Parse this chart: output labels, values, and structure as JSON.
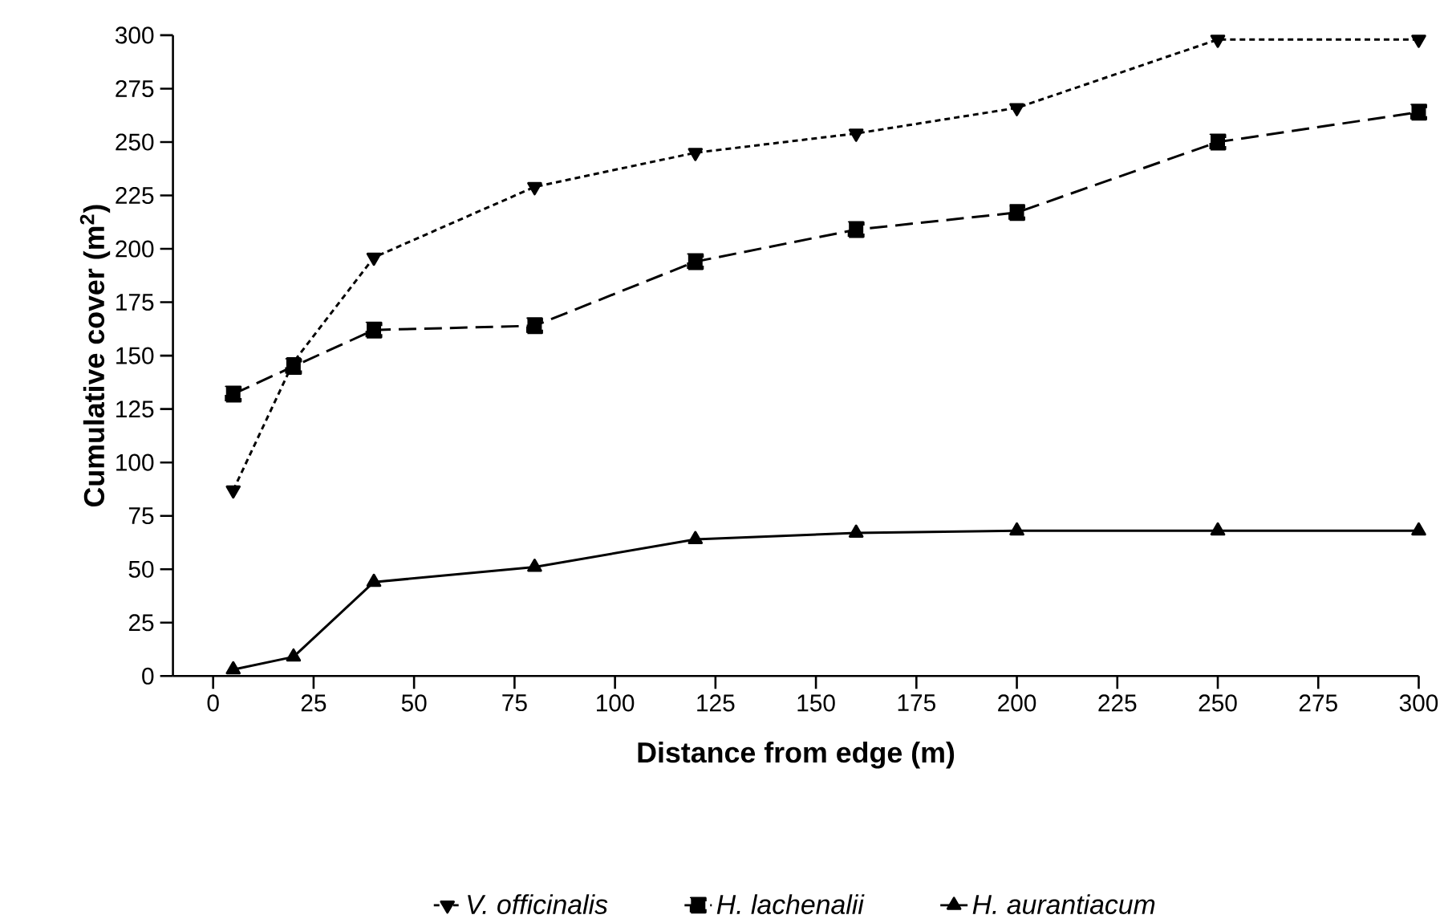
{
  "chart_data": {
    "type": "line",
    "xlabel": "Distance from edge (m)",
    "ylabel": "Cumulative cover (m$^{2}$)",
    "x": [
      5,
      20,
      40,
      80,
      120,
      160,
      200,
      250,
      300
    ],
    "xlim": [
      -10,
      300
    ],
    "xticks": [
      0,
      25,
      50,
      75,
      100,
      125,
      150,
      175,
      200,
      225,
      250,
      275,
      300
    ],
    "ylim": [
      0,
      300
    ],
    "yticks": [
      0,
      25,
      50,
      75,
      100,
      125,
      150,
      175,
      200,
      225,
      250,
      275,
      300
    ],
    "grid": false,
    "legend": "bottom",
    "series": [
      {
        "name": "V. officinalis",
        "color": "#000000",
        "marker": "triangle-down",
        "line_style": "dotted",
        "values": [
          87,
          147,
          196,
          229,
          245,
          254,
          266,
          298,
          298
        ]
      },
      {
        "name": "H. lachenalii",
        "color": "#000000",
        "marker": "square",
        "line_style": "dashed",
        "values": [
          132,
          145,
          162,
          164,
          194,
          209,
          217,
          250,
          264
        ]
      },
      {
        "name": "H. aurantiacum",
        "color": "#000000",
        "marker": "triangle",
        "line_style": "solid",
        "values": [
          3,
          9,
          44,
          51,
          64,
          67,
          68,
          68,
          68
        ]
      }
    ]
  }
}
